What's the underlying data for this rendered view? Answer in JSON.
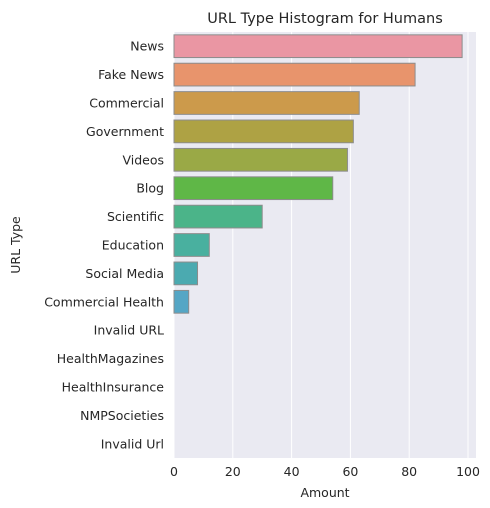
{
  "chart_data": {
    "type": "bar",
    "orientation": "horizontal",
    "title": "URL Type Histogram for Humans",
    "xlabel": "Amount",
    "ylabel": "URL Type",
    "categories": [
      "News",
      "Fake News",
      "Commercial",
      "Government",
      "Videos",
      "Blog",
      "Scientific",
      "Education",
      "Social Media",
      "Commercial Health",
      "Invalid URL",
      "HealthMagazines",
      "HealthInsurance",
      "NMPSocieties",
      "Invalid Url"
    ],
    "values": [
      98,
      82,
      63,
      61,
      59,
      54,
      30,
      12,
      8,
      5,
      0,
      0,
      0,
      0,
      0
    ],
    "colors": [
      "#ea96a3",
      "#e8946c",
      "#cc9a4b",
      "#aea244",
      "#9aa946",
      "#5fb747",
      "#4bb489",
      "#49b09f",
      "#4baab0",
      "#55a6c5",
      "#8aa2e0",
      "#b49ae8",
      "#d98ee6",
      "#e88bd1",
      "#ea90b8"
    ],
    "xlim": [
      0,
      100
    ],
    "xticks": [
      0,
      20,
      40,
      60,
      80,
      100
    ],
    "grid": true,
    "background": "#eaeaf2"
  }
}
